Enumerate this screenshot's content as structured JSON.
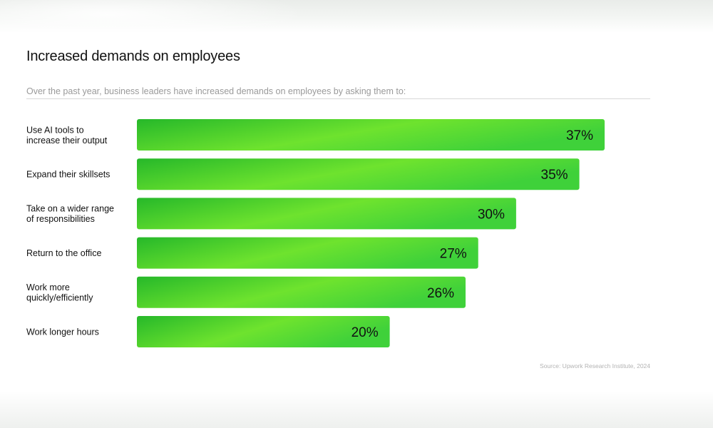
{
  "header": {
    "title": "Increased demands on employees",
    "subtitle": "Over the past year, business leaders have increased demands on employees by asking them to:"
  },
  "footer": {
    "source": "Source: Upwork Research Institute, 2024"
  },
  "colors": {
    "bar_dark": "#26b82a",
    "bar_light": "#6ee32e",
    "bar_mid": "#3fd13a",
    "text": "#111111"
  },
  "chart_data": {
    "type": "bar",
    "orientation": "horizontal",
    "title": "Increased demands on employees",
    "xlabel": "",
    "ylabel": "",
    "xlim": [
      0,
      40
    ],
    "grid": false,
    "categories": [
      [
        "Use AI tools to",
        "increase their output"
      ],
      [
        "Expand their skillsets"
      ],
      [
        "Take on a wider range",
        "of responsibilities"
      ],
      [
        "Return to the office"
      ],
      [
        "Work more",
        "quickly/efficiently"
      ],
      [
        "Work longer hours"
      ]
    ],
    "values": [
      37,
      35,
      30,
      27,
      26,
      20
    ],
    "value_labels": [
      "37%",
      "35%",
      "30%",
      "27%",
      "26%",
      "20%"
    ]
  }
}
